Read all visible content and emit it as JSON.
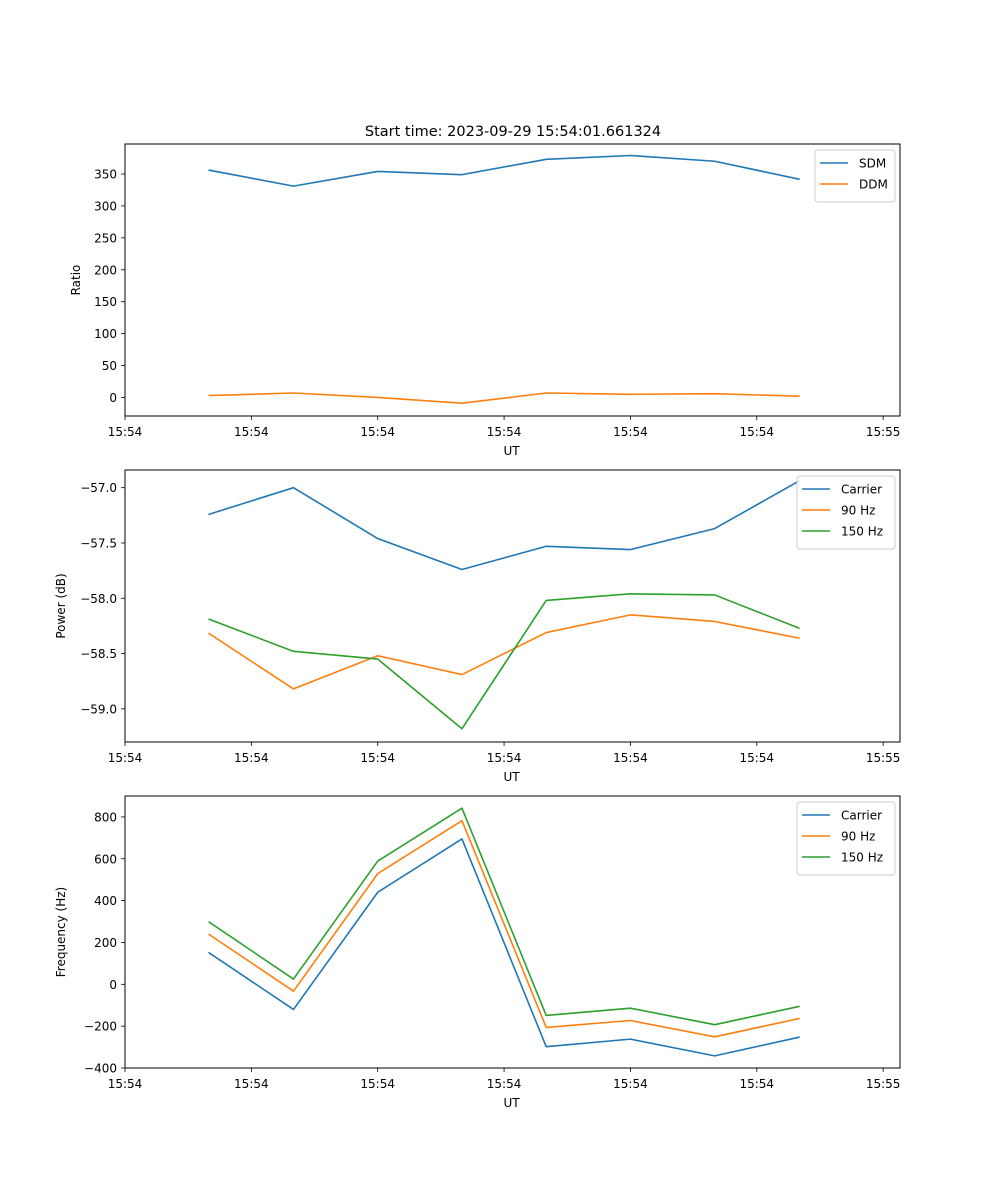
{
  "figure_title": "Start time: 2023-09-29 15:54:01.661324",
  "chart_data": [
    {
      "type": "line",
      "title": "Start time: 2023-09-29 15:54:01.661324",
      "xlabel": "UT",
      "ylabel": "Ratio",
      "x": [
        1,
        2,
        3,
        4,
        5,
        6,
        7,
        8
      ],
      "xlim": [
        0,
        9.2
      ],
      "xticks": [
        0,
        1.5,
        3,
        4.5,
        6,
        7.5,
        9
      ],
      "xtick_labels": [
        "15:54",
        "15:54",
        "15:54",
        "15:54",
        "15:54",
        "15:54",
        "15:55"
      ],
      "ylim": [
        -29,
        397
      ],
      "yticks": [
        0,
        50,
        100,
        150,
        200,
        250,
        300,
        350
      ],
      "ytick_labels": [
        "0",
        "50",
        "100",
        "150",
        "200",
        "250",
        "300",
        "350"
      ],
      "grid": false,
      "legend_position": "top-right",
      "series": [
        {
          "name": "SDM",
          "color": "#1f77b4",
          "values": [
            356,
            331,
            354,
            349,
            373,
            379,
            370,
            342
          ]
        },
        {
          "name": "DDM",
          "color": "#ff7f0e",
          "values": [
            3,
            7,
            0,
            -9,
            7,
            5,
            6,
            2
          ]
        }
      ]
    },
    {
      "type": "line",
      "title": "",
      "xlabel": "UT",
      "ylabel": "Power (dB)",
      "x": [
        1,
        2,
        3,
        4,
        5,
        6,
        7,
        8
      ],
      "xlim": [
        0,
        9.2
      ],
      "xticks": [
        0,
        1.5,
        3,
        4.5,
        6,
        7.5,
        9
      ],
      "xtick_labels": [
        "15:54",
        "15:54",
        "15:54",
        "15:54",
        "15:54",
        "15:54",
        "15:55"
      ],
      "ylim": [
        -59.3,
        -56.84
      ],
      "yticks": [
        -59.0,
        -58.5,
        -58.0,
        -57.5,
        -57.0
      ],
      "ytick_labels": [
        "−59.0",
        "−58.5",
        "−58.0",
        "−57.5",
        "−57.0"
      ],
      "grid": false,
      "legend_position": "top-right",
      "series": [
        {
          "name": "Carrier",
          "color": "#1f77b4",
          "values": [
            -57.24,
            -57.0,
            -57.46,
            -57.74,
            -57.53,
            -57.56,
            -57.37,
            -56.94
          ]
        },
        {
          "name": "90 Hz",
          "color": "#ff7f0e",
          "values": [
            -58.32,
            -58.82,
            -58.52,
            -58.69,
            -58.31,
            -58.15,
            -58.21,
            -58.36
          ]
        },
        {
          "name": "150 Hz",
          "color": "#2ca02c",
          "values": [
            -58.19,
            -58.48,
            -58.55,
            -59.18,
            -58.02,
            -57.96,
            -57.97,
            -58.27
          ]
        }
      ]
    },
    {
      "type": "line",
      "title": "",
      "xlabel": "UT",
      "ylabel": "Frequency (Hz)",
      "x": [
        1,
        2,
        3,
        4,
        5,
        6,
        7,
        8
      ],
      "xlim": [
        0,
        9.2
      ],
      "xticks": [
        0,
        1.5,
        3,
        4.5,
        6,
        7.5,
        9
      ],
      "xtick_labels": [
        "15:54",
        "15:54",
        "15:54",
        "15:54",
        "15:54",
        "15:54",
        "15:55"
      ],
      "ylim": [
        -400,
        900
      ],
      "yticks": [
        -400,
        -200,
        0,
        200,
        400,
        600,
        800
      ],
      "ytick_labels": [
        "−400",
        "−200",
        "0",
        "200",
        "400",
        "600",
        "800"
      ],
      "grid": false,
      "legend_position": "top-right",
      "series": [
        {
          "name": "Carrier",
          "color": "#1f77b4",
          "values": [
            150,
            -120,
            440,
            695,
            -298,
            -262,
            -342,
            -253
          ]
        },
        {
          "name": "90 Hz",
          "color": "#ff7f0e",
          "values": [
            238,
            -33,
            529,
            782,
            -206,
            -173,
            -251,
            -164
          ]
        },
        {
          "name": "150 Hz",
          "color": "#2ca02c",
          "values": [
            297,
            25,
            589,
            842,
            -149,
            -114,
            -193,
            -106
          ]
        }
      ]
    }
  ]
}
